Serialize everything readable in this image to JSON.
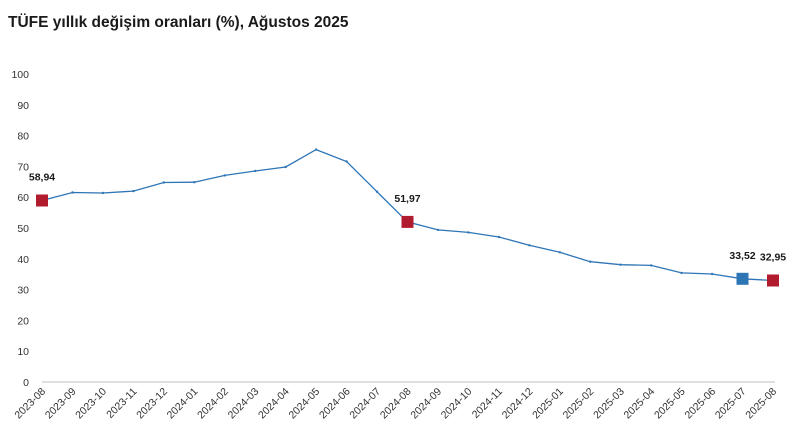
{
  "title": "TÜFE yıllık değişim oranları (%), Ağustos 2025",
  "chart_data": {
    "type": "line",
    "title": "TÜFE yıllık değişim oranları (%), Ağustos 2025",
    "xlabel": "",
    "ylabel": "",
    "ylim": [
      0,
      100
    ],
    "yticks": [
      0,
      10,
      20,
      30,
      40,
      50,
      60,
      70,
      80,
      90,
      100
    ],
    "grid": false,
    "categories": [
      "2023-08",
      "2023-09",
      "2023-10",
      "2023-11",
      "2023-12",
      "2024-01",
      "2024-02",
      "2024-03",
      "2024-04",
      "2024-05",
      "2024-06",
      "2024-07",
      "2024-08",
      "2024-09",
      "2024-10",
      "2024-11",
      "2024-12",
      "2025-01",
      "2025-02",
      "2025-03",
      "2025-04",
      "2025-05",
      "2025-06",
      "2025-07",
      "2025-08"
    ],
    "series": [
      {
        "values": [
          58.94,
          61.53,
          61.36,
          61.98,
          64.77,
          64.86,
          67.07,
          68.5,
          69.8,
          75.45,
          71.6,
          61.78,
          51.97,
          49.38,
          48.58,
          47.09,
          44.38,
          42.12,
          39.05,
          38.1,
          37.86,
          35.41,
          35.05,
          33.52,
          32.95
        ],
        "color": "#2e75b6"
      }
    ],
    "markers": [
      {
        "index": 0,
        "label": "58,94",
        "color": "#b01c2e"
      },
      {
        "index": 12,
        "label": "51,97",
        "color": "#b01c2e"
      },
      {
        "index": 23,
        "label": "33,52",
        "color": "#2e75b6"
      },
      {
        "index": 24,
        "label": "32,95",
        "color": "#b01c2e"
      }
    ]
  }
}
